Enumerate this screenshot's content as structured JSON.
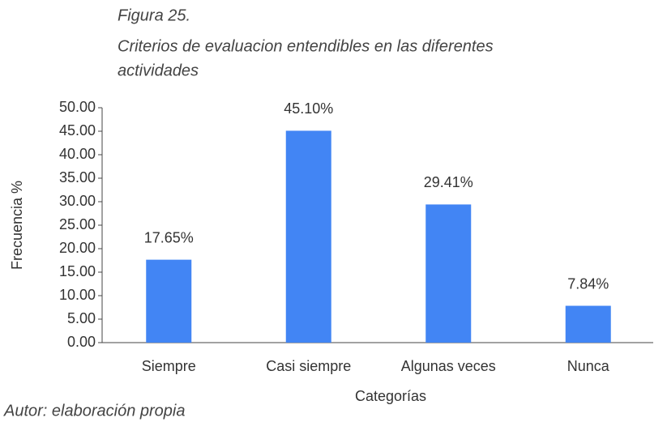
{
  "chart_data": {
    "type": "bar",
    "title": "Figura 25.",
    "subtitle": [
      "Criterios de evaluacion entendibles en las diferentes",
      "actividades"
    ],
    "x_label": "Categorías",
    "y_label": "Frecuencia %",
    "annotation": "Autor: elaboración  propia",
    "categories": [
      "Siempre",
      "Casi siempre",
      "Algunas veces",
      "Nunca"
    ],
    "values": [
      17.65,
      45.1,
      29.41,
      7.84
    ],
    "value_labels": [
      "17.65%",
      "45.10%",
      "29.41%",
      "7.84%"
    ],
    "color": "#4285f4",
    "ylim": [
      0,
      50
    ],
    "yticks": [
      {
        "value": 0,
        "label": "0.00"
      },
      {
        "value": 5,
        "label": "5.00"
      },
      {
        "value": 10,
        "label": "10.00"
      },
      {
        "value": 15,
        "label": "15.00"
      },
      {
        "value": 20,
        "label": "20.00"
      },
      {
        "value": 25,
        "label": "25.00"
      },
      {
        "value": 30,
        "label": "30.00"
      },
      {
        "value": 35,
        "label": "35.00"
      },
      {
        "value": 40,
        "label": "40.00"
      },
      {
        "value": 45,
        "label": "45.00"
      },
      {
        "value": 50,
        "label": "50.00"
      }
    ],
    "grid": false
  }
}
